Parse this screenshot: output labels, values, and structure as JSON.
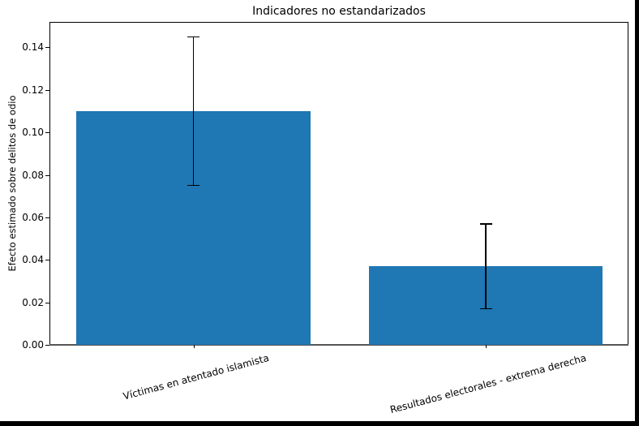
{
  "chart_data": {
    "type": "bar",
    "title": "Indicadores no estandarizados",
    "xlabel": "",
    "ylabel": "Efecto estimado sobre delitos de odio",
    "categories": [
      "Víctimas en atentado islamista",
      "Resultados electorales - extrema derecha"
    ],
    "values": [
      0.11,
      0.037
    ],
    "error_bars": [
      {
        "lower": 0.075,
        "upper": 0.145
      },
      {
        "lower": 0.017,
        "upper": 0.057
      }
    ],
    "ylim": [
      0,
      0.152
    ],
    "yticks": [
      "0.00",
      "0.02",
      "0.04",
      "0.06",
      "0.08",
      "0.10",
      "0.12",
      "0.14"
    ],
    "grid": false,
    "legend": null,
    "bar_color": "#1f77b4",
    "errorbar_color": "#000000",
    "xtick_rotation_deg": -15
  }
}
